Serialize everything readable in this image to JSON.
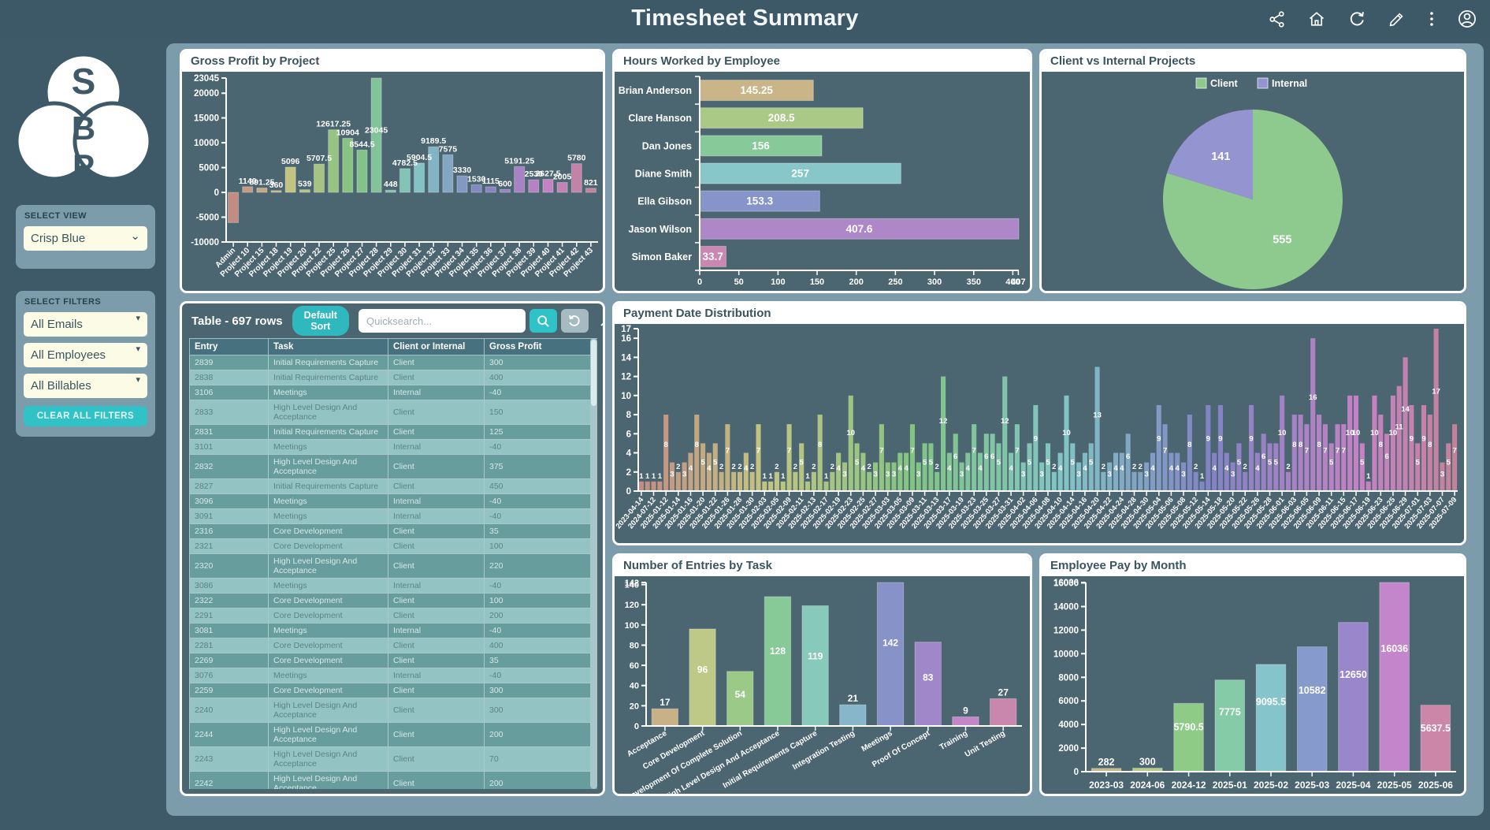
{
  "header": {
    "title": "Timesheet Summary",
    "icons": [
      "share-icon",
      "home-icon",
      "refresh-icon",
      "edit-icon",
      "kebab-menu-icon",
      "account-icon"
    ]
  },
  "colors": {
    "accent_teal": "#2fc2c6",
    "page_bg": "#3e5a68",
    "main_panel_bg": "#7d9cab",
    "card_bg": "#4b6571"
  },
  "sidebar": {
    "logo_letters": [
      "S",
      "B",
      "P"
    ],
    "select_view": {
      "label": "SELECT VIEW",
      "value": "Crisp Blue"
    },
    "select_filters": {
      "label": "SELECT FILTERS",
      "filters": [
        "All Emails",
        "All Employees",
        "All Billables"
      ],
      "clear_button": "CLEAR ALL FILTERS"
    }
  },
  "table": {
    "title": "Table - 697 rows",
    "sort_button": "Default Sort",
    "search_placeholder": "Quicksearch...",
    "columns": [
      "Entry",
      "Task",
      "Client or Internal",
      "Gross Profit"
    ],
    "rows": [
      [
        "2839",
        "Initial Requirements Capture",
        "Client",
        "300"
      ],
      [
        "2838",
        "Initial Requirements Capture",
        "Client",
        "400"
      ],
      [
        "3106",
        "Meetings",
        "Internal",
        "-40"
      ],
      [
        "2833",
        "High Level Design And Acceptance",
        "Client",
        "150"
      ],
      [
        "2831",
        "Initial Requirements Capture",
        "Client",
        "125"
      ],
      [
        "3101",
        "Meetings",
        "Internal",
        "-40"
      ],
      [
        "2832",
        "High Level Design And Acceptance",
        "Client",
        "375"
      ],
      [
        "2827",
        "Initial Requirements Capture",
        "Client",
        "450"
      ],
      [
        "3096",
        "Meetings",
        "Internal",
        "-40"
      ],
      [
        "3091",
        "Meetings",
        "Internal",
        "-40"
      ],
      [
        "2316",
        "Core Development",
        "Client",
        "35"
      ],
      [
        "2321",
        "Core Development",
        "Client",
        "100"
      ],
      [
        "2320",
        "High Level Design And Acceptance",
        "Client",
        "220"
      ],
      [
        "3086",
        "Meetings",
        "Internal",
        "-40"
      ],
      [
        "2322",
        "Core Development",
        "Client",
        "100"
      ],
      [
        "2291",
        "Core Development",
        "Client",
        "200"
      ],
      [
        "3081",
        "Meetings",
        "Internal",
        "-40"
      ],
      [
        "2281",
        "Core Development",
        "Client",
        "400"
      ],
      [
        "2269",
        "Core Development",
        "Client",
        "35"
      ],
      [
        "3076",
        "Meetings",
        "Internal",
        "-40"
      ],
      [
        "2259",
        "Core Development",
        "Client",
        "300"
      ],
      [
        "2240",
        "High Level Design And Acceptance",
        "Client",
        "300"
      ],
      [
        "2244",
        "High Level Design And Acceptance",
        "Client",
        "200"
      ],
      [
        "2243",
        "High Level Design And Acceptance",
        "Client",
        "70"
      ],
      [
        "2242",
        "High Level Design And Acceptance",
        "Client",
        "200"
      ]
    ]
  },
  "chart_data": [
    {
      "id": "gross_profit",
      "type": "bar",
      "title": "Gross Profit by Project",
      "x_labels": [
        "Admin",
        "Project 10",
        "Project 15",
        "Project 18",
        "Project 19",
        "Project 20",
        "Project 22",
        "Project 25",
        "Project 26",
        "Project 27",
        "Project 28",
        "Project 29",
        "Project 30",
        "Project 31",
        "Project 32",
        "Project 33",
        "Project 34",
        "Project 35",
        "Project 36",
        "Project 37",
        "Project 38",
        "Project 39",
        "Project 40",
        "Project 41",
        "Project 42",
        "Project 43"
      ],
      "values": [
        -6100,
        1140,
        891.25,
        360,
        5096,
        539,
        5707.5,
        12617.25,
        10904,
        8544.5,
        23045,
        448,
        4782.5,
        5904.5,
        9189.5,
        7575,
        3330,
        1530,
        1115,
        600,
        5191.25,
        2530,
        2627.5,
        2005,
        5780,
        821
      ],
      "value_labels": [
        "",
        "1140",
        "891.25",
        "360",
        "5096",
        "539",
        "5707.5",
        "12617.25",
        "10904",
        "8544.5",
        "23045",
        "448",
        "4782.5",
        "5904.5",
        "9189.5",
        "7575",
        "3330",
        "1530",
        "1115",
        "600",
        "5191.25",
        "2530",
        "2627.5",
        "2005",
        "5780",
        "821"
      ],
      "yticks": [
        -10000,
        -5000,
        0,
        5000,
        10000,
        15000,
        20000,
        23045
      ],
      "ylim": [
        -10000,
        23045
      ],
      "palette_hsl": [
        8,
        340,
        35,
        64
      ]
    },
    {
      "id": "hours_by_employee",
      "type": "hbar",
      "title": "Hours Worked by Employee",
      "categories": [
        "Brian Anderson",
        "Clare Hanson",
        "Dan Jones",
        "Diane Smith",
        "Ella Gibson",
        "Jason Wilson",
        "Simon Baker"
      ],
      "values": [
        145.25,
        208.5,
        156,
        257,
        153.3,
        407.6,
        33.7
      ],
      "value_labels": [
        "145.25",
        "208.5",
        "156",
        "257",
        "153.3",
        "407.6",
        "33.7"
      ],
      "xticks": [
        0,
        50,
        100,
        150,
        200,
        250,
        300,
        350,
        400,
        407
      ],
      "xlim": [
        0,
        407.6
      ],
      "palette_hsl": [
        42,
        322,
        38,
        66
      ]
    },
    {
      "id": "client_internal",
      "type": "pie",
      "title": "Client vs Internal Projects",
      "legend": [
        "Client",
        "Internal"
      ],
      "values": [
        555,
        141
      ],
      "colors": [
        "#8ec98e",
        "#9494d0"
      ],
      "legend_position": "top"
    },
    {
      "id": "payment_dates",
      "type": "bar",
      "title": "Payment Date Distribution",
      "x_labels": [
        "2023-04-14",
        "2024-07-12",
        "2025-01-12",
        "2025-01-14",
        "2025-01-16",
        "2025-01-20",
        "2025-01-22",
        "2025-01-26",
        "2025-01-28",
        "2025-01-30",
        "2025-02-03",
        "2025-02-05",
        "2025-02-09",
        "2025-02-11",
        "2025-02-13",
        "2025-02-17",
        "2025-02-19",
        "2025-02-23",
        "2025-02-25",
        "2025-02-27",
        "2025-03-03",
        "2025-03-05",
        "2025-03-09",
        "2025-03-11",
        "2025-03-13",
        "2025-03-17",
        "2025-03-19",
        "2025-03-23",
        "2025-03-25",
        "2025-03-27",
        "2025-03-31",
        "2025-04-02",
        "2025-04-06",
        "2025-04-08",
        "2025-04-10",
        "2025-04-14",
        "2025-04-16",
        "2025-04-20",
        "2025-04-22",
        "2025-04-24",
        "2025-04-28",
        "2025-04-30",
        "2025-05-04",
        "2025-05-06",
        "2025-05-08",
        "2025-05-12",
        "2025-05-14",
        "2025-05-18",
        "2025-05-20",
        "2025-05-22",
        "2025-05-26",
        "2025-05-28",
        "2025-06-01",
        "2025-06-03",
        "2025-06-05",
        "2025-06-09",
        "2025-06-11",
        "2025-06-15",
        "2025-06-17",
        "2025-06-19",
        "2025-06-23",
        "2025-06-25",
        "2025-06-29",
        "2025-07-01",
        "2025-07-03",
        "2025-07-07",
        "2025-07-09"
      ],
      "label_every": 2,
      "values": [
        1,
        1,
        1,
        1,
        8,
        3,
        2,
        3,
        4,
        8,
        5,
        4,
        5,
        2,
        7,
        2,
        2,
        4,
        2,
        7,
        1,
        1,
        2,
        1,
        7,
        2,
        5,
        1,
        2,
        8,
        1,
        2,
        4,
        3,
        10,
        5,
        4,
        2,
        3,
        7,
        3,
        3,
        4,
        4,
        7,
        3,
        5,
        5,
        2,
        12,
        4,
        6,
        3,
        4,
        7,
        4,
        6,
        6,
        5,
        12,
        4,
        7,
        3,
        5,
        9,
        3,
        5,
        2,
        4,
        10,
        5,
        3,
        4,
        5,
        13,
        2,
        3,
        4,
        4,
        6,
        2,
        2,
        3,
        4,
        9,
        7,
        4,
        4,
        3,
        8,
        2,
        1,
        9,
        4,
        9,
        4,
        3,
        5,
        2,
        9,
        4,
        6,
        5,
        5,
        10,
        2,
        8,
        8,
        7,
        16,
        8,
        7,
        5,
        7,
        7,
        10,
        10,
        5,
        1,
        10,
        8,
        6,
        10,
        11,
        14,
        9,
        5,
        9,
        8,
        17,
        3,
        5,
        7
      ],
      "yticks": [
        0,
        2,
        4,
        6,
        8,
        10,
        12,
        14,
        16,
        17
      ],
      "ylim": [
        0,
        17
      ],
      "palette_hsl": [
        10,
        338,
        36,
        64
      ]
    },
    {
      "id": "entries_by_task",
      "type": "bar",
      "title": "Number of Entries by Task",
      "x_labels": [
        "Acceptance",
        "Core Development",
        "Development Of Complete Solution",
        "High Level Design And Acceptance",
        "Initial Requirements Capture",
        "Integration Testing",
        "Meetings",
        "Proof Of Concept",
        "Training",
        "Unit Testing"
      ],
      "values": [
        17,
        96,
        54,
        128,
        119,
        21,
        142,
        83,
        9,
        27
      ],
      "value_labels": [
        "17",
        "96",
        "54",
        "128",
        "119",
        "21",
        "142",
        "83",
        "9",
        "27"
      ],
      "yticks": [
        0,
        20,
        40,
        60,
        80,
        100,
        120,
        140,
        142
      ],
      "ylim": [
        0,
        142
      ],
      "palette_hsl": [
        38,
        326,
        38,
        66
      ]
    },
    {
      "id": "pay_by_month",
      "type": "bar",
      "title": "Employee Pay by Month",
      "x_labels": [
        "2023-03",
        "2024-06",
        "2024-12",
        "2025-01",
        "2025-02",
        "2025-03",
        "2025-04",
        "2025-05",
        "2025-06"
      ],
      "values": [
        282,
        300,
        5790.5,
        7775,
        9095.5,
        10582,
        12650,
        16036,
        5637.5
      ],
      "value_labels": [
        "282",
        "300",
        "5790.5",
        "7775",
        "9095.5",
        "10582",
        "12650",
        "16036",
        "5637.5"
      ],
      "yticks": [
        0,
        2000,
        4000,
        6000,
        8000,
        10000,
        12000,
        14000,
        16000,
        16036
      ],
      "ylim": [
        0,
        16036
      ],
      "palette_hsl": [
        42,
        330,
        40,
        66
      ]
    }
  ]
}
